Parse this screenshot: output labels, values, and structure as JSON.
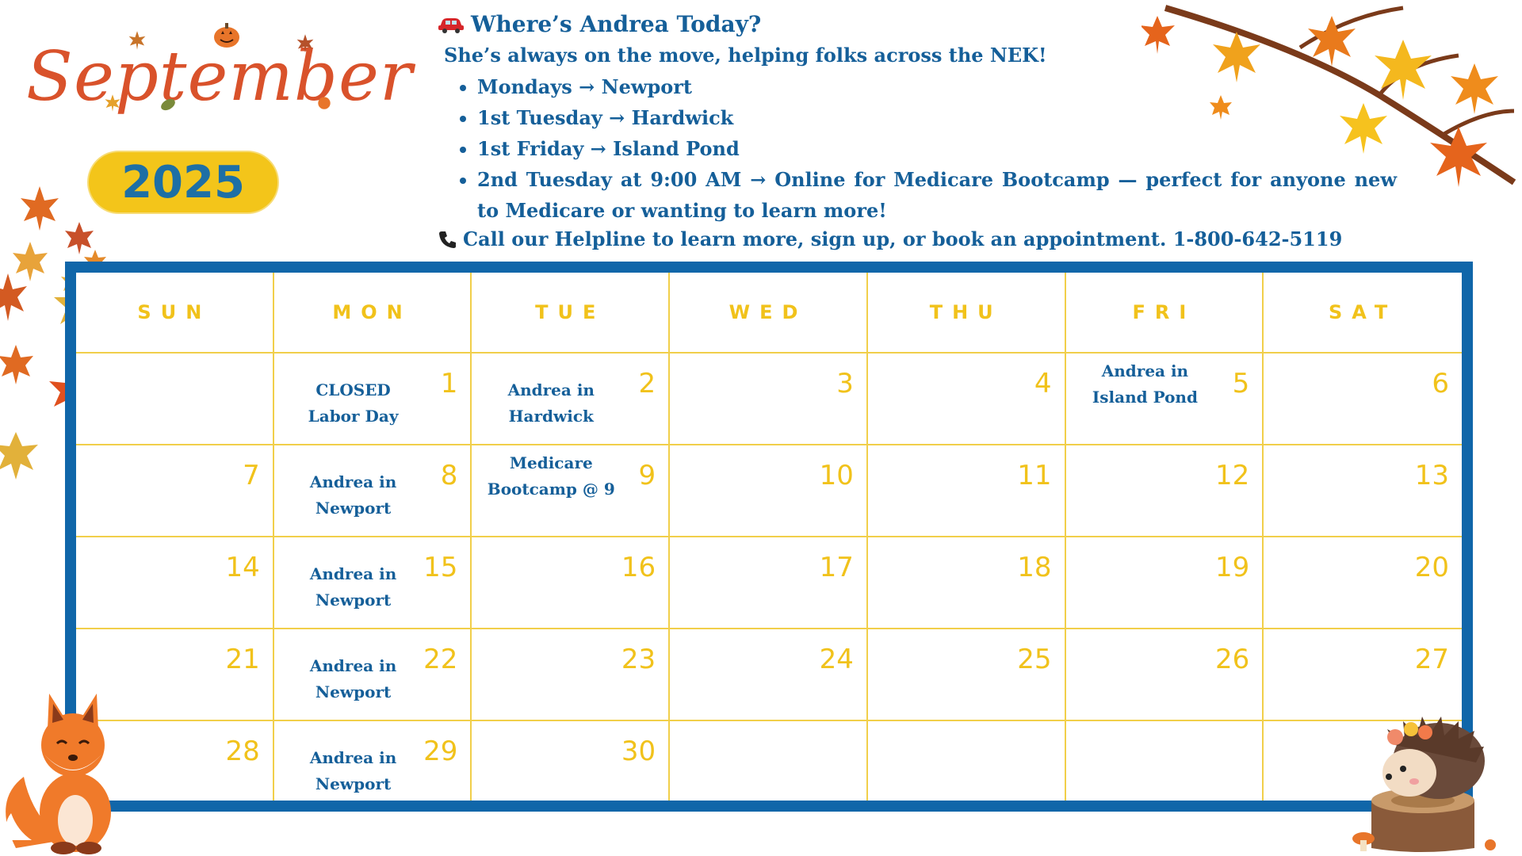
{
  "month": "September",
  "year": "2025",
  "info": {
    "icon_car": "car-icon",
    "heading": "Where’s Andrea Today?",
    "subheading": "She’s always on the move, helping folks across the NEK!",
    "items": [
      "Mondays → Newport",
      "1st Tuesday → Hardwick",
      "1st Friday → Island Pond",
      "2nd Tuesday at 9:00 AM → Online for Medicare Bootcamp — perfect for anyone new to Medicare or wanting to learn more!"
    ],
    "icon_phone": "phone-icon",
    "call": "Call our Helpline to learn more, sign up, or book an appointment. 1-800-642-5119"
  },
  "calendar": {
    "weekdays": [
      "SUN",
      "MON",
      "TUE",
      "WED",
      "THU",
      "FRI",
      "SAT"
    ],
    "weeks": [
      [
        {
          "day": "",
          "event": ""
        },
        {
          "day": "1",
          "event": "CLOSED Labor Day"
        },
        {
          "day": "2",
          "event": "Andrea in Hardwick"
        },
        {
          "day": "3",
          "event": ""
        },
        {
          "day": "4",
          "event": ""
        },
        {
          "day": "5",
          "event": "Andrea in Island Pond"
        },
        {
          "day": "6",
          "event": ""
        }
      ],
      [
        {
          "day": "7",
          "event": ""
        },
        {
          "day": "8",
          "event": "Andrea in Newport"
        },
        {
          "day": "9",
          "event": "Medicare Bootcamp @ 9"
        },
        {
          "day": "10",
          "event": ""
        },
        {
          "day": "11",
          "event": ""
        },
        {
          "day": "12",
          "event": ""
        },
        {
          "day": "13",
          "event": ""
        }
      ],
      [
        {
          "day": "14",
          "event": ""
        },
        {
          "day": "15",
          "event": "Andrea in Newport"
        },
        {
          "day": "16",
          "event": ""
        },
        {
          "day": "17",
          "event": ""
        },
        {
          "day": "18",
          "event": ""
        },
        {
          "day": "19",
          "event": ""
        },
        {
          "day": "20",
          "event": ""
        }
      ],
      [
        {
          "day": "21",
          "event": ""
        },
        {
          "day": "22",
          "event": "Andrea in Newport"
        },
        {
          "day": "23",
          "event": ""
        },
        {
          "day": "24",
          "event": ""
        },
        {
          "day": "25",
          "event": ""
        },
        {
          "day": "26",
          "event": ""
        },
        {
          "day": "27",
          "event": ""
        }
      ],
      [
        {
          "day": "28",
          "event": ""
        },
        {
          "day": "29",
          "event": "Andrea in Newport"
        },
        {
          "day": "30",
          "event": ""
        },
        {
          "day": "",
          "event": ""
        },
        {
          "day": "",
          "event": ""
        },
        {
          "day": "",
          "event": ""
        },
        {
          "day": "",
          "event": ""
        }
      ]
    ]
  },
  "colors": {
    "frame_blue": "#1066a9",
    "text_blue": "#155f99",
    "accent_yellow": "#f1c21b",
    "title_orange": "#d9522b"
  },
  "decorations": [
    "maple-leaf-icon",
    "pumpkin-icon",
    "fox-illustration",
    "hedgehog-illustration",
    "autumn-branch-illustration"
  ]
}
